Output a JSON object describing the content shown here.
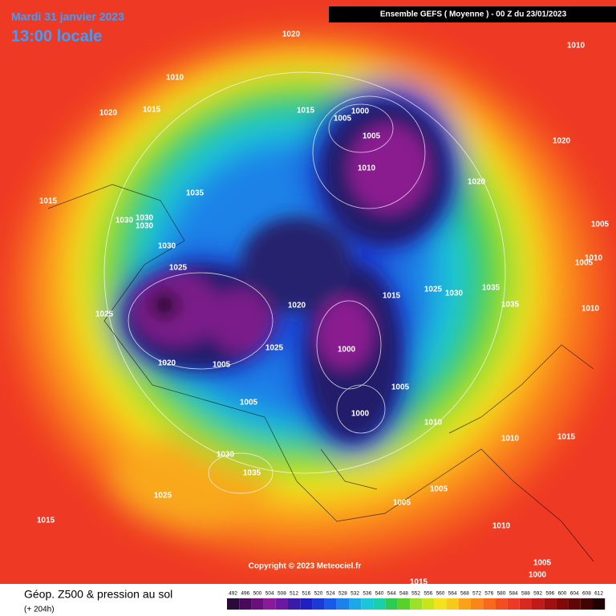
{
  "header": {
    "date": "Mardi 31 janvier 2023",
    "time": "13:00 locale",
    "run": "Ensemble GEFS  ( Moyenne )  - 00 Z du 23/01/2023",
    "copyright": "Copyright © 2023 Meteociel.fr"
  },
  "footer": {
    "title": "Géop. Z500 & pression au sol",
    "lead": "(+ 204h)"
  },
  "colorbar": [
    492,
    496,
    500,
    504,
    508,
    512,
    516,
    520,
    524,
    528,
    532,
    536,
    540,
    544,
    548,
    552,
    556,
    560,
    564,
    568,
    572,
    576,
    580,
    584,
    588,
    592,
    596,
    600,
    604,
    608,
    612
  ],
  "isobar_labels": [
    1020,
    1010,
    1010,
    1020,
    1015,
    1015,
    1000,
    1005,
    1005,
    1010,
    1020,
    1020,
    1035,
    1015,
    1030,
    1030,
    1030,
    1005,
    1030,
    1005,
    1010,
    1025,
    1025,
    1030,
    1035,
    1015,
    1020,
    1035,
    1010,
    1025,
    1025,
    1000,
    1020,
    1005,
    1005,
    1005,
    1000,
    1010,
    1010,
    1015,
    1030,
    1035,
    1025,
    1005,
    1005,
    1015,
    1010,
    1005,
    1000,
    1015
  ]
}
